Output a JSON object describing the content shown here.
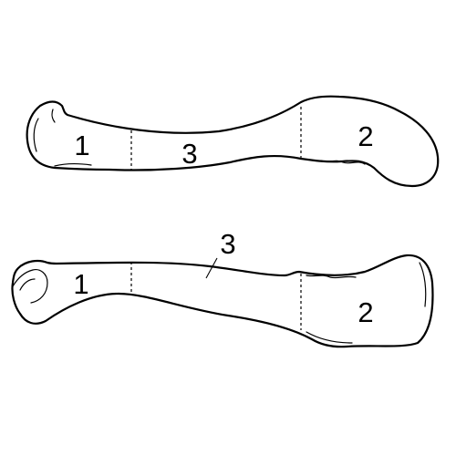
{
  "top_view": {
    "labels": {
      "end_1": "1",
      "shaft_3": "3",
      "end_2": "2"
    }
  },
  "bottom_view": {
    "labels": {
      "end_1": "1",
      "shaft_3": "3",
      "end_2": "2"
    }
  }
}
